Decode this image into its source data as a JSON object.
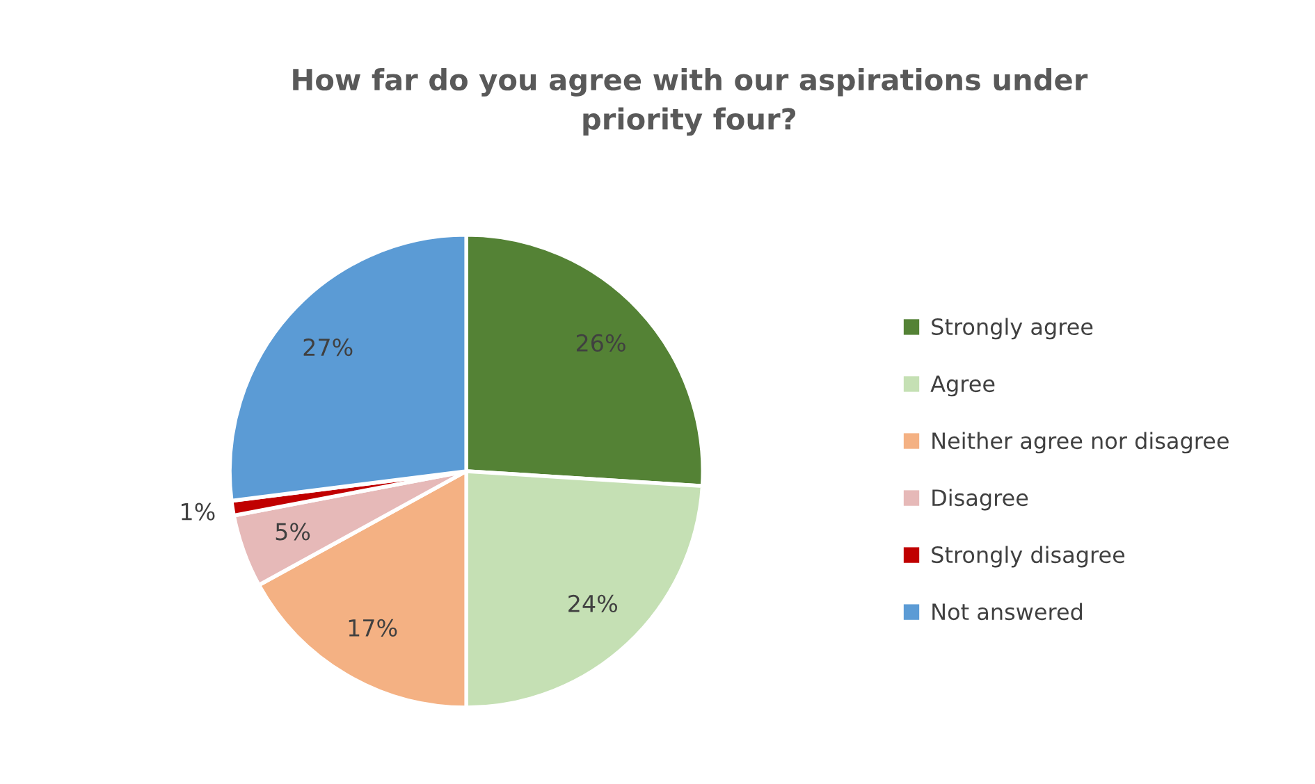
{
  "chart_data": {
    "type": "pie",
    "title": "How far do you agree with our aspirations under\npriority four?",
    "categories": [
      "Strongly agree",
      "Agree",
      "Neither agree nor disagree",
      "Disagree",
      "Strongly disagree",
      "Not answered"
    ],
    "values": [
      26,
      24,
      17,
      5,
      1,
      27
    ],
    "colors": [
      "#548235",
      "#c5e0b4",
      "#f4b183",
      "#e6b9b8",
      "#c00000",
      "#5b9bd5"
    ],
    "value_labels": [
      "26%",
      "24%",
      "17%",
      "5%",
      "1%",
      "27%"
    ],
    "legend": "right"
  }
}
